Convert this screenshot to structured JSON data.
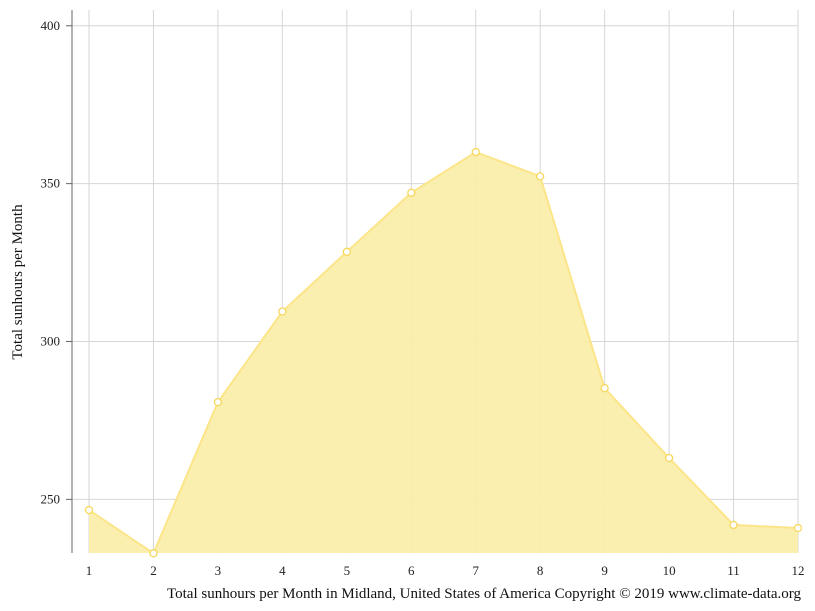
{
  "chart_data": {
    "type": "area",
    "title": "",
    "xlabel": "",
    "ylabel": "Total sunhours per Month",
    "caption": "Total sunhours per Month in Midland, United States of America Copyright © 2019 www.climate-data.org",
    "categories": [
      "1",
      "2",
      "3",
      "4",
      "5",
      "6",
      "7",
      "8",
      "9",
      "10",
      "11",
      "12"
    ],
    "series": [
      {
        "values": [
          246.6,
          232.9,
          280.8,
          309.5,
          328.4,
          347.1,
          360.0,
          352.3,
          285.2,
          263.1,
          241.9,
          240.9
        ]
      }
    ],
    "ylim": [
      233,
      405
    ],
    "yticks": [
      250,
      300,
      350,
      400
    ],
    "grid": true,
    "legend": "none",
    "colors": {
      "fill": "#faeeaa",
      "line": "#fce589",
      "marker_stroke": "#f5d75c",
      "marker_fill": "#ffffff",
      "grid": "#d6d6d6",
      "axis": "#666666"
    }
  }
}
